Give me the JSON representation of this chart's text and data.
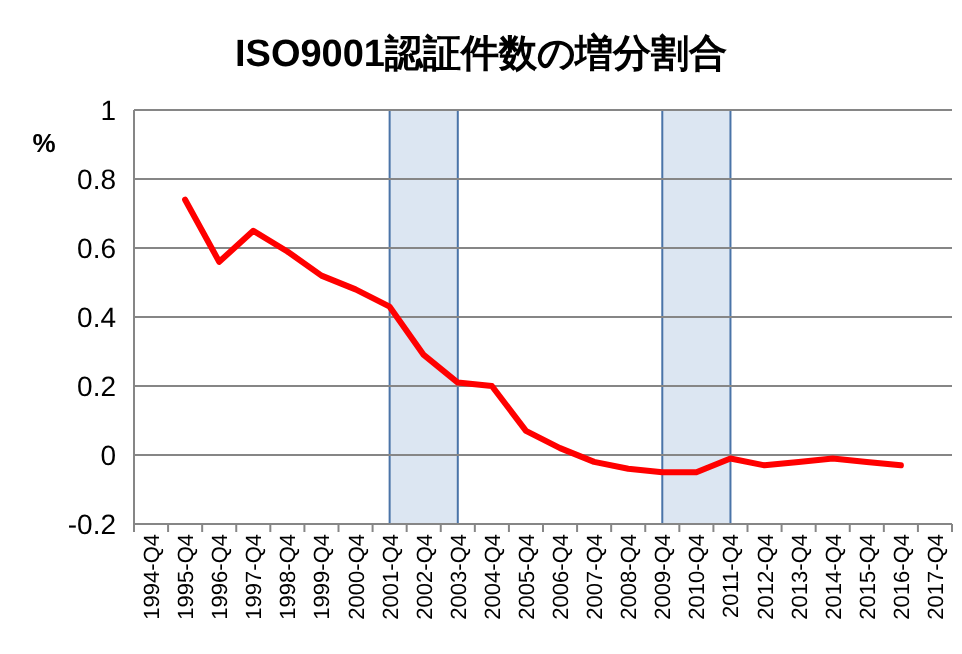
{
  "chart_data": {
    "type": "line",
    "title": "ISO9001認証件数の増分割合",
    "ylabel": "%",
    "categories": [
      "1994-Q4",
      "1995-Q4",
      "1996-Q4",
      "1997-Q4",
      "1998-Q4",
      "1999-Q4",
      "2000-Q4",
      "2001-Q4",
      "2002-Q4",
      "2003-Q4",
      "2004-Q4",
      "2005-Q4",
      "2006-Q4",
      "2007-Q4",
      "2008-Q4",
      "2009-Q4",
      "2010-Q4",
      "2011-Q4",
      "2012-Q4",
      "2013-Q4",
      "2014-Q4",
      "2015-Q4",
      "2016-Q4",
      "2017-Q4"
    ],
    "series": [
      {
        "color": "#ff0000",
        "values": [
          null,
          0.74,
          0.56,
          0.65,
          0.59,
          0.52,
          0.48,
          0.43,
          0.29,
          0.21,
          0.2,
          0.07,
          0.02,
          -0.02,
          -0.04,
          -0.05,
          -0.05,
          -0.01,
          -0.03,
          -0.02,
          -0.01,
          -0.02,
          -0.03,
          null
        ]
      }
    ],
    "ylim": [
      -0.2,
      1
    ],
    "yticks": [
      -0.2,
      0,
      0.2,
      0.4,
      0.6,
      0.8,
      1
    ],
    "grid": "y",
    "marker": "none",
    "line_style": "solid",
    "bands": [
      {
        "axis": "x",
        "from": "2001-Q4",
        "to": "2003-Q4",
        "color": "#dce6f2"
      },
      {
        "axis": "x",
        "from": "2009-Q4",
        "to": "2011-Q4",
        "color": "#dce6f2"
      }
    ]
  }
}
